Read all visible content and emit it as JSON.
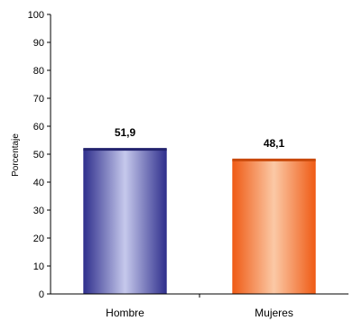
{
  "chart_data": {
    "type": "bar",
    "categories": [
      "Hombre",
      "Mujeres"
    ],
    "values": [
      51.9,
      48.1
    ],
    "value_labels": [
      "51,9",
      "48,1"
    ],
    "title": "",
    "xlabel": "",
    "ylabel": "Porcentaje",
    "ylim": [
      0,
      100
    ],
    "yticks": [
      0,
      10,
      20,
      30,
      40,
      50,
      60,
      70,
      80,
      90,
      100
    ],
    "grid": false,
    "legend": "none",
    "colors": {
      "Hombre": {
        "dark": "#2e2e8c",
        "light": "#c6c9ec",
        "top": "#23236e"
      },
      "Mujeres": {
        "dark": "#ef5a14",
        "light": "#fbc9a6",
        "top": "#c94a0c"
      }
    }
  }
}
